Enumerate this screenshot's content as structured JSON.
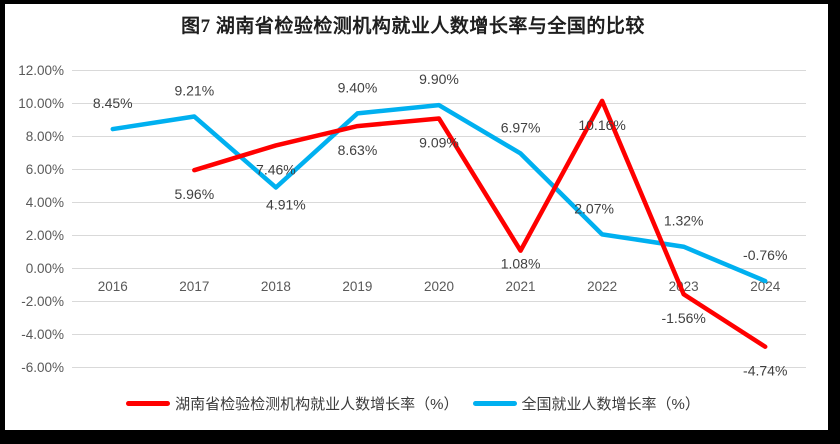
{
  "chart_data": {
    "type": "line",
    "title": "图7 湖南省检验检测机构就业人数增长率与全国的比较",
    "categories": [
      "2016",
      "2017",
      "2018",
      "2019",
      "2020",
      "2021",
      "2022",
      "2023",
      "2024"
    ],
    "y_axis": {
      "range": [
        -6,
        12
      ],
      "step": 2,
      "ticks": [
        {
          "value": 12,
          "label": "12.00%"
        },
        {
          "value": 10,
          "label": "10.00%"
        },
        {
          "value": 8,
          "label": "8.00%"
        },
        {
          "value": 6,
          "label": "6.00%"
        },
        {
          "value": 4,
          "label": "4.00%"
        },
        {
          "value": 2,
          "label": "2.00%"
        },
        {
          "value": 0,
          "label": "0.00%"
        },
        {
          "value": -2,
          "label": "-2.00%"
        },
        {
          "value": -4,
          "label": "-4.00%"
        },
        {
          "value": -6,
          "label": "-6.00%"
        }
      ]
    },
    "grid": true,
    "legend_position": "bottom",
    "series": [
      {
        "name": "湖南省检验检测机构就业人数增长率（%）",
        "color": "#FF0000",
        "values": [
          null,
          5.96,
          7.46,
          8.63,
          9.09,
          1.08,
          10.16,
          -1.56,
          -4.74
        ],
        "data_labels": [
          null,
          {
            "text": "5.96%",
            "pos": "below"
          },
          {
            "text": "7.46%",
            "pos": "below"
          },
          {
            "text": "8.63%",
            "pos": "below"
          },
          {
            "text": "9.09%",
            "pos": "below"
          },
          {
            "text": "1.08%",
            "pos": "below",
            "dy": 18
          },
          {
            "text": "10.16%",
            "pos": "below"
          },
          {
            "text": "-1.56%",
            "pos": "below"
          },
          {
            "text": "-4.74%",
            "pos": "below"
          }
        ]
      },
      {
        "name": "全国就业人数增长率（%）",
        "color": "#00B0F0",
        "values": [
          8.45,
          9.21,
          4.91,
          9.4,
          9.9,
          6.97,
          2.07,
          1.32,
          -0.76
        ],
        "data_labels": [
          {
            "text": "8.45%",
            "pos": "above"
          },
          {
            "text": "9.21%",
            "pos": "above"
          },
          {
            "text": "4.91%",
            "pos": "below",
            "dx": 10,
            "dy": 22
          },
          {
            "text": "9.40%",
            "pos": "above"
          },
          {
            "text": "9.90%",
            "pos": "above"
          },
          {
            "text": "6.97%",
            "pos": "above"
          },
          {
            "text": "2.07%",
            "pos": "above",
            "dx": -8
          },
          {
            "text": "1.32%",
            "pos": "above"
          },
          {
            "text": "-0.76%",
            "pos": "above"
          }
        ]
      }
    ]
  }
}
